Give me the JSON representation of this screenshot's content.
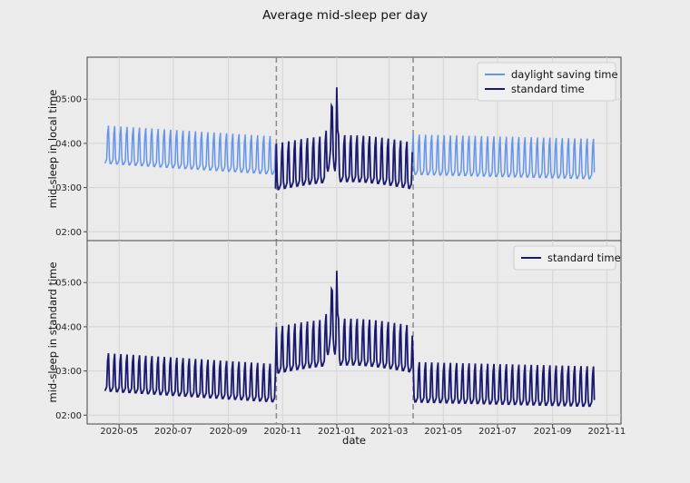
{
  "chart_data": {
    "title": "Average mid-sleep per day",
    "xlabel": "date",
    "x_ticks": [
      "2020-05",
      "2020-07",
      "2020-09",
      "2020-11",
      "2021-01",
      "2021-03",
      "2021-05",
      "2021-07",
      "2021-09",
      "2021-11"
    ],
    "x_tick_dates": [
      "2020-05-01",
      "2020-07-01",
      "2020-09-01",
      "2020-11-01",
      "2021-01-01",
      "2021-03-01",
      "2021-05-01",
      "2021-07-01",
      "2021-09-01",
      "2021-11-01"
    ],
    "xlim": [
      "2020-03-26",
      "2021-11-17"
    ],
    "start_date": "2020-04-15",
    "end_date": "2021-10-18",
    "dst_boundaries": [
      "2020-10-25",
      "2021-03-28"
    ],
    "grid": true,
    "panels": [
      {
        "type": "line",
        "ylabel": "mid-sleep in local time",
        "y_ticks": [
          "02:00",
          "03:00",
          "04:00",
          "05:00"
        ],
        "ylim_hours": [
          1.8,
          5.95
        ],
        "legend_position": "top-right",
        "series": [
          {
            "name": "daylight saving time",
            "color": "#6495ed",
            "segments": [
              "dst1",
              "dst2"
            ]
          },
          {
            "name": "standard time",
            "color": "#191970",
            "segments": [
              "std"
            ]
          }
        ]
      },
      {
        "type": "line",
        "ylabel": "mid-sleep in standard time",
        "y_ticks": [
          "02:00",
          "03:00",
          "04:00",
          "05:00"
        ],
        "ylim_hours": [
          1.8,
          5.95
        ],
        "legend_position": "top-right",
        "series": [
          {
            "name": "standard time",
            "color": "#191970",
            "segments": [
              "all"
            ]
          }
        ]
      }
    ]
  }
}
